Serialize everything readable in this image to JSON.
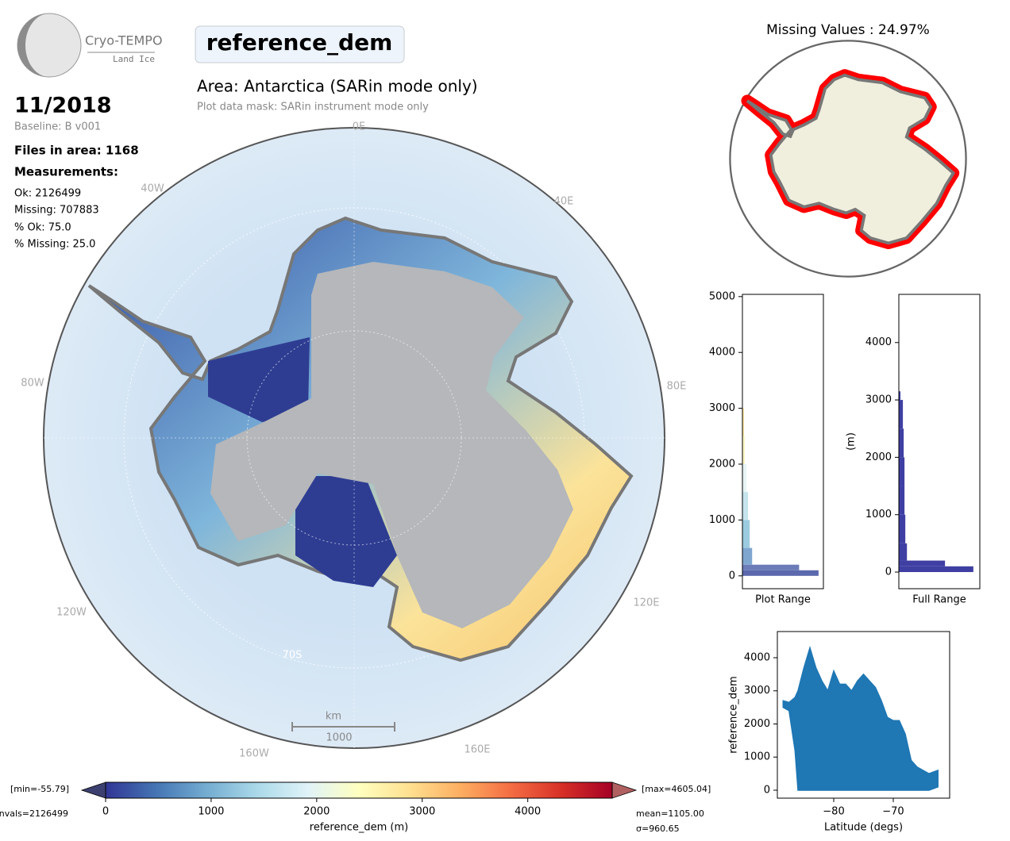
{
  "header": {
    "logo_title": "Cryo-TEMPO",
    "logo_subtitle": "Land Ice",
    "title": "reference_dem",
    "area": "Area: Antarctica (SARin mode only)",
    "mask": "Plot data mask: SARin instrument mode only"
  },
  "stats": {
    "date": "11/2018",
    "baseline": "Baseline: B v001",
    "files": "Files in area: 1168",
    "measurements_title": "Measurements:",
    "lines": [
      "Ok: 2126499",
      "Missing: 707883",
      "% Ok: 75.0",
      "% Missing: 25.0"
    ]
  },
  "map": {
    "lon_labels": [
      "0E",
      "40E",
      "80E",
      "120E",
      "160E",
      "160W",
      "120W",
      "80W",
      "40W"
    ],
    "lat_label": "70S",
    "scale_unit": "km",
    "scale_length": "1000"
  },
  "missing_map": {
    "title": "Missing Values : 24.97%"
  },
  "chart_data": [
    {
      "type": "histogram",
      "xlabel": "Plot Range",
      "bins": [
        0,
        100,
        200,
        500,
        1000,
        1500,
        2000,
        2500,
        3000
      ],
      "counts": [
        94,
        70,
        12,
        9,
        7,
        5,
        3,
        2
      ],
      "colors": [
        "#5b68ad",
        "#6b7cb8",
        "#7fa6cf",
        "#9ccbe0",
        "#c5e4ee",
        "#e6f4f3",
        "#fbf6c4",
        "#fde9a3"
      ],
      "xlim": [
        0,
        100
      ],
      "ylim": [
        -230,
        5040
      ],
      "yticks": [
        0,
        1000,
        2000,
        3000,
        4000,
        5000
      ]
    },
    {
      "type": "histogram",
      "xlabel": "Full Range",
      "ylabel": "(m)",
      "bins": [
        0,
        100,
        200,
        500,
        1000,
        1500,
        2000,
        2500,
        3000,
        3150
      ],
      "counts": [
        92,
        57,
        10,
        8,
        7,
        7,
        6,
        5,
        2
      ],
      "color": "#3f3fa3",
      "xlim": [
        0,
        100
      ],
      "ylim": [
        -290,
        4840
      ],
      "yticks": [
        0,
        1000,
        2000,
        3000,
        4000
      ]
    },
    {
      "type": "area",
      "xlabel": "Latitude (degs)",
      "ylabel": "reference_dem",
      "color": "#1f77b4",
      "x": [
        -88.5,
        -87.5,
        -86.5,
        -86,
        -85,
        -84,
        -83,
        -82,
        -81,
        -80,
        -79,
        -78,
        -77,
        -76,
        -75,
        -74,
        -73,
        -72,
        -71,
        -70,
        -69,
        -68,
        -67,
        -66,
        -64,
        -62.5
      ],
      "high": [
        2700,
        2650,
        2800,
        3000,
        3700,
        4300,
        3700,
        3300,
        3000,
        3600,
        3200,
        3200,
        3000,
        3300,
        3500,
        3300,
        3100,
        2700,
        2200,
        2100,
        2100,
        1700,
        900,
        700,
        500,
        600
      ],
      "low": [
        2500,
        2400,
        1200,
        0,
        0,
        0,
        0,
        0,
        0,
        0,
        0,
        0,
        0,
        0,
        0,
        0,
        0,
        0,
        0,
        0,
        0,
        0,
        0,
        0,
        0,
        100
      ],
      "xlim": [
        -89.47,
        -60.53
      ],
      "ylim": [
        -240,
        4790
      ],
      "xticks": [
        {
          "value": -80,
          "label": "−80"
        },
        {
          "value": -70,
          "label": "−70"
        }
      ],
      "yticks": [
        0,
        1000,
        2000,
        3000,
        4000
      ]
    },
    {
      "type": "colorbar",
      "xlabel": "reference_dem (m)",
      "xlim": [
        0,
        4800
      ],
      "xticks": [
        0,
        1000,
        2000,
        3000,
        4000
      ],
      "min_label": "[min=-55.79]",
      "max_label": "[max=4605.04]",
      "nvals_label": "nvals=2126499",
      "mean_label": "mean=1105.00",
      "std_label": "σ=960.65"
    }
  ]
}
